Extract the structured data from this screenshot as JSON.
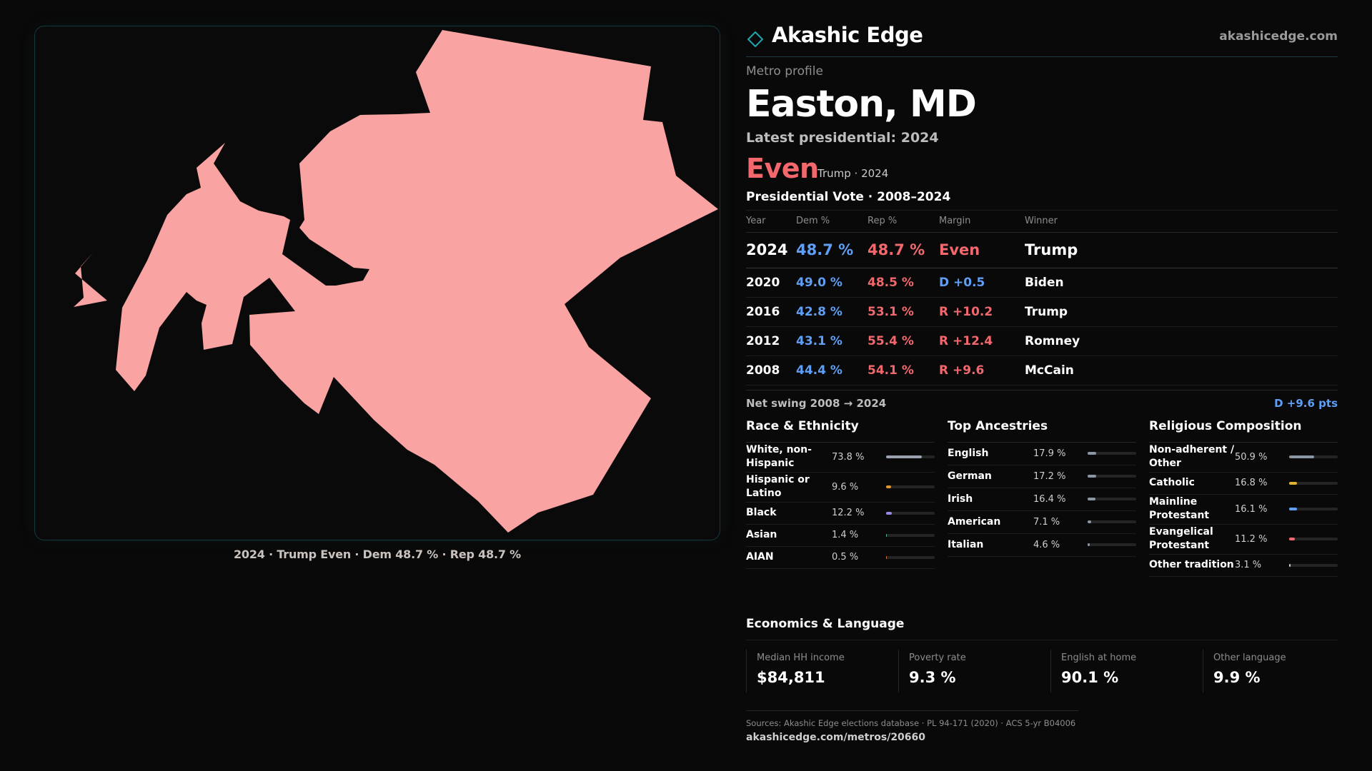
{
  "brand": {
    "name": "Akashic Edge",
    "url": "akashicedge.com"
  },
  "profile": {
    "eyebrow": "Metro profile",
    "title": "Easton, MD",
    "latest": "Latest presidential: 2024",
    "headline": "Even",
    "headline_sub": "Trump · 2024"
  },
  "map": {
    "fill_color": "#f9a3a3",
    "caption": "2024 · Trump  Even · Dem 48.7 % · Rep 48.7 %"
  },
  "presidential": {
    "title": "Presidential Vote · 2008–2024",
    "headers": {
      "year": "Year",
      "dem": "Dem %",
      "rep": "Rep %",
      "margin": "Margin",
      "winner": "Winner"
    },
    "rows": [
      {
        "year": "2024",
        "dem": "48.7 %",
        "rep": "48.7 %",
        "margin": "Even",
        "winner": "Trump"
      },
      {
        "year": "2020",
        "dem": "49.0 %",
        "rep": "48.5 %",
        "margin": "D +0.5",
        "winner": "Biden"
      },
      {
        "year": "2016",
        "dem": "42.8 %",
        "rep": "53.1 %",
        "margin": "R +10.2",
        "winner": "Trump"
      },
      {
        "year": "2012",
        "dem": "43.1 %",
        "rep": "55.4 %",
        "margin": "R +12.4",
        "winner": "Romney"
      },
      {
        "year": "2008",
        "dem": "44.4 %",
        "rep": "54.1 %",
        "margin": "R +9.6",
        "winner": "McCain"
      }
    ],
    "net_swing_label": "Net swing 2008 → 2024",
    "net_swing_value": "D +9.6 pts"
  },
  "race": {
    "title": "Race & Ethnicity",
    "items": [
      {
        "label": "White, non-Hispanic",
        "value": "73.8 %",
        "pct": 73.8,
        "color": "#9aa3ae"
      },
      {
        "label": "Hispanic or Latino",
        "value": "9.6 %",
        "pct": 9.6,
        "color": "#e0962e"
      },
      {
        "label": "Black",
        "value": "12.2 %",
        "pct": 12.2,
        "color": "#9b86e6"
      },
      {
        "label": "Asian",
        "value": "1.4 %",
        "pct": 1.4,
        "color": "#4fb89a"
      },
      {
        "label": "AIAN",
        "value": "0.5 %",
        "pct": 0.5,
        "color": "#d9703f"
      }
    ]
  },
  "ancestry": {
    "title": "Top Ancestries",
    "items": [
      {
        "label": "English",
        "value": "17.9 %",
        "pct": 17.9,
        "color": "#8a96a3"
      },
      {
        "label": "German",
        "value": "17.2 %",
        "pct": 17.2,
        "color": "#8a96a3"
      },
      {
        "label": "Irish",
        "value": "16.4 %",
        "pct": 16.4,
        "color": "#8a96a3"
      },
      {
        "label": "American",
        "value": "7.1 %",
        "pct": 7.1,
        "color": "#8a96a3"
      },
      {
        "label": "Italian",
        "value": "4.6 %",
        "pct": 4.6,
        "color": "#8a96a3"
      }
    ]
  },
  "religion": {
    "title": "Religious Composition",
    "items": [
      {
        "label": "Non-adherent / Other",
        "value": "50.9 %",
        "pct": 50.9,
        "color": "#8a96a3"
      },
      {
        "label": "Catholic",
        "value": "16.8 %",
        "pct": 16.8,
        "color": "#e0b32e"
      },
      {
        "label": "Mainline Protestant",
        "value": "16.1 %",
        "pct": 16.1,
        "color": "#5f9ff5"
      },
      {
        "label": "Evangelical Protestant",
        "value": "11.2 %",
        "pct": 11.2,
        "color": "#f2686d"
      },
      {
        "label": "Other tradition",
        "value": "3.1 %",
        "pct": 3.1,
        "color": "#c9c9c9"
      }
    ]
  },
  "economics": {
    "title": "Economics & Language",
    "items": [
      {
        "label": "Median HH income",
        "value": "$84,811"
      },
      {
        "label": "Poverty rate",
        "value": "9.3 %"
      },
      {
        "label": "English at home",
        "value": "90.1 %"
      },
      {
        "label": "Other language",
        "value": "9.9 %"
      }
    ]
  },
  "sources": {
    "text": "Sources: Akashic Edge elections database · PL 94-171 (2020) · ACS 5-yr B04006",
    "url": "akashicedge.com/metros/20660"
  }
}
